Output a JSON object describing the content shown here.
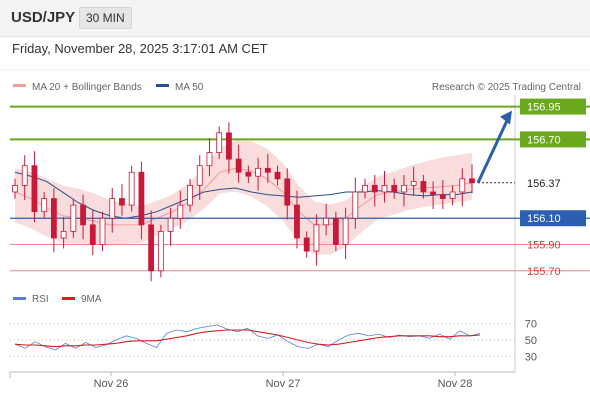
{
  "header": {
    "symbol": "USD/JPY",
    "timeframe": "30 MIN",
    "datetime": "Friday, November 28, 2025 3:17:01 AM CET"
  },
  "colors": {
    "support_resistance": "#6aa81e",
    "pivot": "#2b5fb4",
    "weak_level": "#f08a8a",
    "bull": "#c8193a",
    "bear": "#c8193a",
    "band_fill": "#f8d6d6",
    "ma20": "#f19b9b",
    "ma50": "#2a4d8f",
    "arrow": "#2b5fa8",
    "rsi": "#5580d6",
    "rsi_ma": "#d42020"
  },
  "chart_data": [
    {
      "type": "candlestick",
      "title": "",
      "legend": [
        {
          "label": "MA 20 + Bollinger Bands",
          "color": "#f19b9b"
        },
        {
          "label": "MA 50",
          "color": "#2a4d8f"
        }
      ],
      "legend_position": "top-left",
      "watermark": "Research © 2025 Trading Central",
      "x_ticks": [
        "Nov 26",
        "Nov 27",
        "Nov 28"
      ],
      "price_axis_levels": [
        {
          "value": 156.95,
          "label": "156.95",
          "style": "resistance"
        },
        {
          "value": 156.7,
          "label": "156.70",
          "style": "resistance"
        },
        {
          "value": 156.37,
          "label": "156.37",
          "style": "last"
        },
        {
          "value": 156.1,
          "label": "156.10",
          "style": "pivot"
        },
        {
          "value": 155.9,
          "label": "155.90",
          "style": "support"
        },
        {
          "value": 155.7,
          "label": "155.70",
          "style": "support"
        }
      ],
      "y_range": [
        155.63,
        157.0
      ],
      "candles_close_path": [
        156.35,
        156.5,
        156.15,
        156.25,
        155.95,
        156.0,
        156.2,
        156.05,
        155.9,
        156.1,
        156.25,
        156.2,
        156.45,
        156.05,
        155.7,
        156.0,
        156.1,
        156.2,
        156.35,
        156.5,
        156.6,
        156.75,
        156.55,
        156.45,
        156.42,
        156.48,
        156.45,
        156.4,
        156.2,
        155.95,
        155.85,
        156.05,
        156.1,
        155.9,
        156.1,
        156.3,
        156.35,
        156.3,
        156.35,
        156.3,
        156.35,
        156.38,
        156.3,
        156.28,
        156.25,
        156.3,
        156.4,
        156.37
      ],
      "ma20_path": [
        156.3,
        156.25,
        156.18,
        156.12,
        156.1,
        156.08,
        156.05,
        156.05,
        156.05,
        156.1,
        156.15,
        156.22,
        156.32,
        156.45,
        156.48,
        156.46,
        156.4,
        156.3,
        156.15,
        156.05,
        156.05,
        156.1,
        156.2,
        156.28,
        156.3,
        156.32,
        156.33,
        156.34,
        156.35,
        156.37
      ],
      "ma50_path": [
        156.45,
        156.42,
        156.38,
        156.3,
        156.22,
        156.16,
        156.12,
        156.1,
        156.12,
        156.15,
        156.2,
        156.25,
        156.3,
        156.32,
        156.33,
        156.3,
        156.28,
        156.27,
        156.26,
        156.27,
        156.28,
        156.3,
        156.3,
        156.31,
        156.3,
        156.28,
        156.27,
        156.28,
        156.28,
        156.3
      ],
      "projection": {
        "from": 156.37,
        "to": 156.95
      }
    },
    {
      "type": "line",
      "title": "",
      "legend": [
        {
          "label": "RSI",
          "color": "#5580d6"
        },
        {
          "label": "9MA",
          "color": "#d42020"
        }
      ],
      "y_ticks": [
        "70",
        "50",
        "30"
      ],
      "y_range": [
        20,
        80
      ],
      "series": [
        {
          "name": "RSI",
          "values": [
            45,
            40,
            48,
            42,
            38,
            46,
            40,
            47,
            41,
            44,
            50,
            55,
            52,
            46,
            41,
            58,
            62,
            60,
            64,
            66,
            68,
            63,
            60,
            64,
            55,
            52,
            56,
            48,
            42,
            40,
            45,
            42,
            50,
            56,
            58,
            55,
            57,
            53,
            56,
            54,
            55,
            52,
            57,
            51,
            61,
            55,
            58
          ]
        },
        {
          "name": "9MA",
          "values": [
            45,
            44,
            44,
            43,
            42,
            43,
            43,
            44,
            44,
            45,
            46,
            48,
            49,
            49,
            49,
            51,
            53,
            55,
            58,
            60,
            61,
            62,
            62,
            62,
            60,
            58,
            56,
            53,
            50,
            47,
            45,
            44,
            45,
            47,
            49,
            51,
            53,
            54,
            55,
            55,
            55,
            55,
            54,
            54,
            55,
            55,
            56
          ]
        }
      ]
    }
  ]
}
